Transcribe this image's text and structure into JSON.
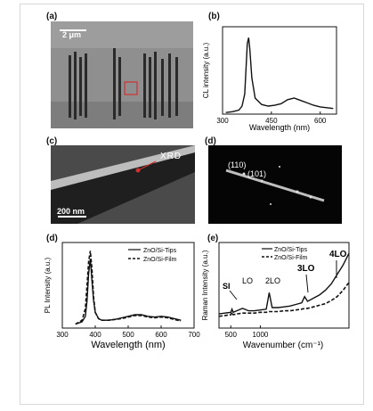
{
  "figure": {
    "panels": {
      "a": {
        "label": "(a)",
        "scalebar": "2 μm"
      },
      "b": {
        "label": "(b)"
      },
      "c": {
        "label": "(c)",
        "annotation": "XRD",
        "scalebar": "200 nm"
      },
      "d_saed": {
        "label": "(d)",
        "spot1": "(110)",
        "spot2": "(101)"
      },
      "d_pl": {
        "label": "(d)"
      },
      "e": {
        "label": "(e)"
      }
    }
  },
  "chart_data": [
    {
      "id": "cl",
      "type": "line",
      "xlabel": "Wavelength (nm)",
      "ylabel": "CL intensity (a.u.)",
      "xlim": [
        300,
        650
      ],
      "xticks": [
        300,
        450,
        600
      ],
      "x": [
        310,
        330,
        350,
        360,
        368,
        372,
        376,
        380,
        384,
        390,
        400,
        420,
        440,
        460,
        480,
        500,
        520,
        540,
        560,
        580,
        600,
        620,
        640
      ],
      "series": [
        {
          "values": [
            0.02,
            0.03,
            0.05,
            0.1,
            0.25,
            0.55,
            0.88,
            0.95,
            0.8,
            0.45,
            0.2,
            0.12,
            0.1,
            0.11,
            0.13,
            0.18,
            0.2,
            0.17,
            0.14,
            0.11,
            0.09,
            0.08,
            0.07
          ]
        }
      ]
    },
    {
      "id": "pl",
      "type": "line",
      "xlabel": "Wavelength (nm)",
      "ylabel": "PL Intensity (a.u.)",
      "xlim": [
        300,
        700
      ],
      "xticks": [
        300,
        400,
        500,
        600,
        700
      ],
      "x": [
        340,
        360,
        370,
        375,
        380,
        385,
        390,
        395,
        400,
        410,
        420,
        440,
        460,
        480,
        500,
        520,
        540,
        560,
        580,
        600,
        620,
        640,
        660
      ],
      "series": [
        {
          "name": "ZnO/Si-Tips",
          "style": "solid",
          "values": [
            0.05,
            0.08,
            0.15,
            0.35,
            0.7,
            0.88,
            0.6,
            0.35,
            0.2,
            0.12,
            0.1,
            0.1,
            0.11,
            0.13,
            0.15,
            0.17,
            0.17,
            0.15,
            0.14,
            0.15,
            0.14,
            0.12,
            0.1
          ]
        },
        {
          "name": "ZnO/Si-Film",
          "style": "dashed",
          "values": [
            0.05,
            0.1,
            0.25,
            0.55,
            0.85,
            0.98,
            0.75,
            0.4,
            0.2,
            0.12,
            0.1,
            0.1,
            0.11,
            0.12,
            0.14,
            0.16,
            0.16,
            0.14,
            0.13,
            0.14,
            0.13,
            0.11,
            0.09
          ]
        }
      ]
    },
    {
      "id": "raman",
      "type": "line",
      "xlabel": "Wavenumber (cm⁻¹)",
      "ylabel": "Raman Intensity (a.u.)",
      "xlim": [
        300,
        2500
      ],
      "xticks": [
        500,
        1000
      ],
      "peak_labels": [
        "SI",
        "LO",
        "2LO",
        "3LO",
        "4LO"
      ],
      "x": [
        300,
        400,
        500,
        520,
        540,
        600,
        700,
        800,
        900,
        1000,
        1100,
        1150,
        1200,
        1300,
        1400,
        1500,
        1600,
        1700,
        1750,
        1800,
        1900,
        2000,
        2100,
        2200,
        2300,
        2400,
        2500
      ],
      "series": [
        {
          "name": "ZnO/Si-Tips",
          "style": "solid",
          "values": [
            0.18,
            0.19,
            0.2,
            0.24,
            0.2,
            0.22,
            0.25,
            0.22,
            0.22,
            0.23,
            0.24,
            0.45,
            0.26,
            0.26,
            0.27,
            0.28,
            0.3,
            0.32,
            0.4,
            0.34,
            0.38,
            0.42,
            0.48,
            0.56,
            0.68,
            0.8,
            0.95
          ]
        },
        {
          "name": "ZnO/Si-Film",
          "style": "dashed",
          "values": [
            0.15,
            0.16,
            0.17,
            0.2,
            0.17,
            0.18,
            0.19,
            0.19,
            0.19,
            0.2,
            0.2,
            0.21,
            0.21,
            0.21,
            0.22,
            0.22,
            0.23,
            0.24,
            0.25,
            0.25,
            0.27,
            0.29,
            0.31,
            0.35,
            0.4,
            0.48,
            0.58
          ]
        }
      ]
    }
  ]
}
